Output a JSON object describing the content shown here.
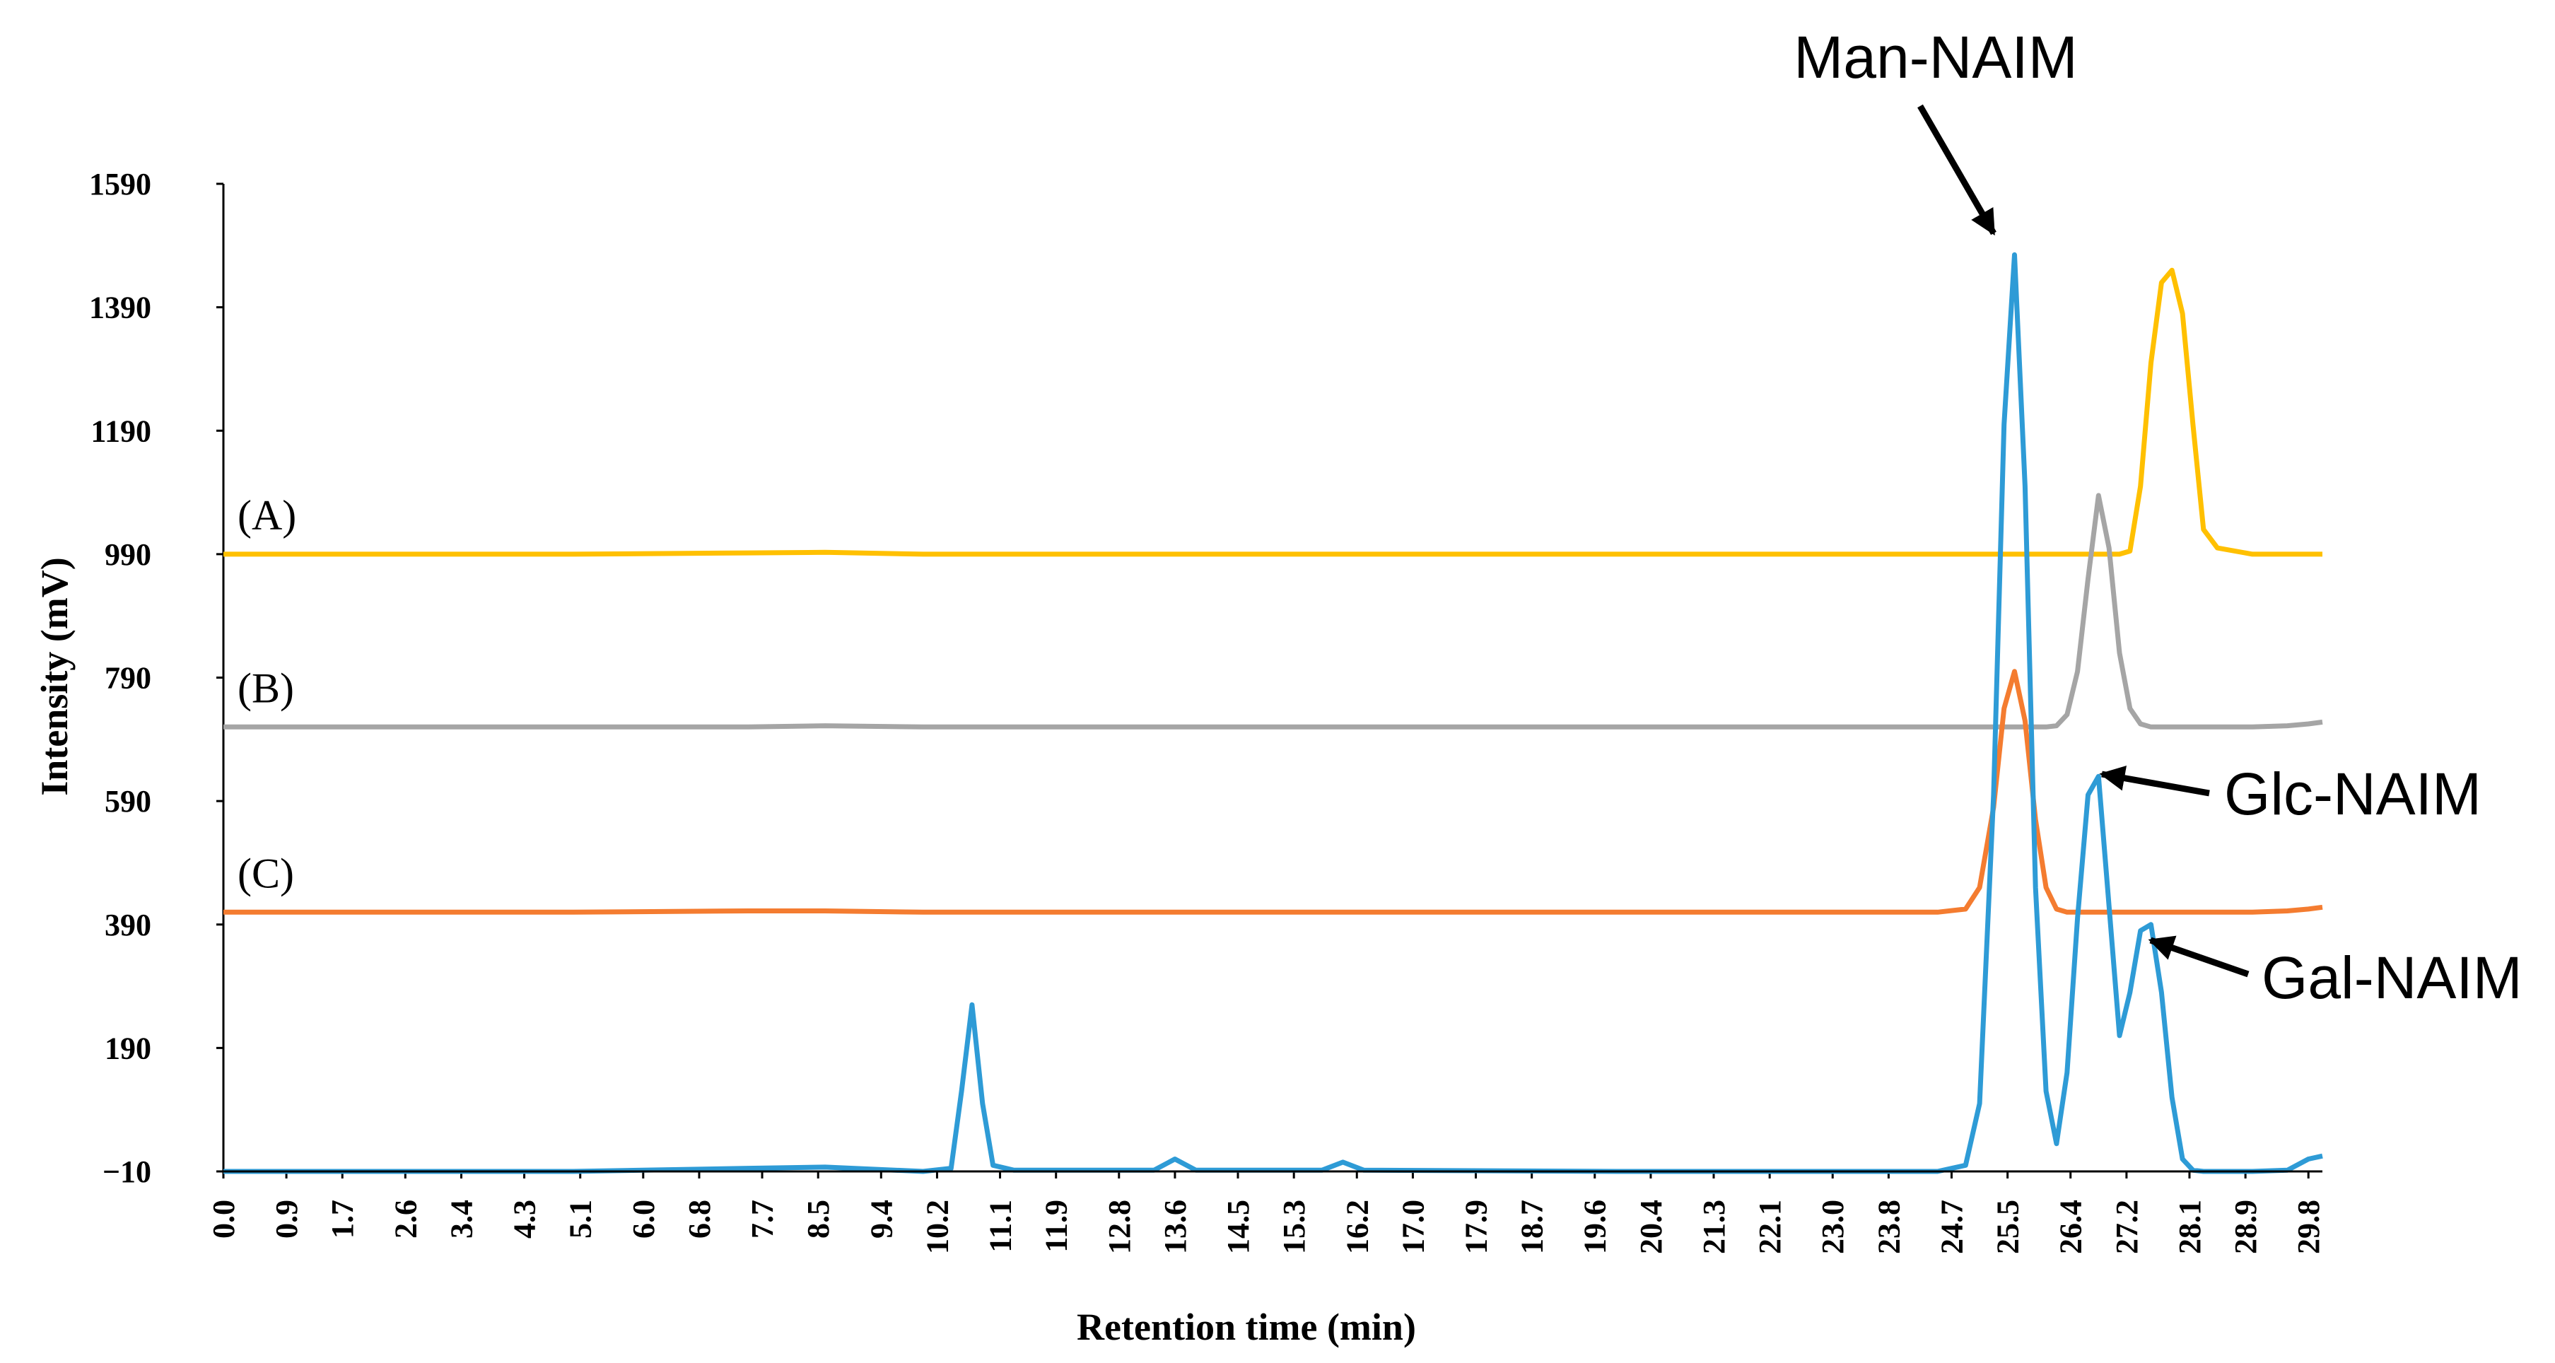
{
  "chart_data": {
    "type": "line",
    "x_label": "Retention time (min)",
    "y_label": "Intensity (mV)",
    "x": [
      0,
      5,
      7.5,
      8.6,
      10,
      10.4,
      10.55,
      10.7,
      10.85,
      11.0,
      11.3,
      13.3,
      13.6,
      13.9,
      15.7,
      16.0,
      16.3,
      20,
      24.5,
      24.9,
      25.1,
      25.3,
      25.45,
      25.6,
      25.75,
      25.9,
      26.05,
      26.2,
      26.35,
      26.5,
      26.65,
      26.8,
      26.95,
      27.1,
      27.25,
      27.4,
      27.55,
      27.7,
      27.85,
      28.0,
      28.15,
      28.3,
      28.5,
      29.0,
      29.5,
      29.8,
      30.0
    ],
    "series": [
      {
        "color": "#2e9bd6",
        "values": [
          -10,
          -10,
          -5,
          -3,
          -10,
          -5,
          120,
          260,
          100,
          0,
          -8,
          -8,
          10,
          -8,
          -8,
          5,
          -8,
          -10,
          -10,
          0,
          100,
          600,
          1200,
          1475,
          1100,
          450,
          120,
          35,
          150,
          400,
          600,
          630,
          420,
          210,
          280,
          380,
          390,
          280,
          110,
          10,
          -8,
          -10,
          -10,
          -10,
          -8,
          10,
          15
        ]
      },
      {
        "name": "(C)",
        "color": "#f47c30",
        "values": [
          410,
          410,
          412,
          412,
          410,
          410,
          410,
          410,
          410,
          410,
          410,
          410,
          410,
          410,
          410,
          410,
          410,
          410,
          410,
          415,
          450,
          580,
          740,
          800,
          720,
          560,
          450,
          415,
          410,
          410,
          410,
          410,
          410,
          410,
          410,
          410,
          410,
          410,
          410,
          410,
          410,
          410,
          410,
          410,
          412,
          415,
          418
        ]
      },
      {
        "name": "(B)",
        "color": "#a5a5a5",
        "values": [
          710,
          710,
          710,
          712,
          710,
          710,
          710,
          710,
          710,
          710,
          710,
          710,
          710,
          710,
          710,
          710,
          710,
          710,
          710,
          710,
          710,
          710,
          710,
          710,
          710,
          710,
          710,
          712,
          730,
          800,
          950,
          1085,
          1000,
          830,
          740,
          715,
          710,
          710,
          710,
          710,
          710,
          710,
          710,
          710,
          712,
          715,
          718
        ]
      },
      {
        "name": "(A)",
        "color": "#ffc000",
        "values": [
          990,
          990,
          992,
          993,
          990,
          990,
          990,
          990,
          990,
          990,
          990,
          990,
          990,
          990,
          990,
          990,
          990,
          990,
          990,
          990,
          990,
          990,
          990,
          990,
          990,
          990,
          990,
          990,
          990,
          990,
          990,
          990,
          990,
          990,
          995,
          1100,
          1300,
          1430,
          1450,
          1380,
          1200,
          1030,
          1000,
          990,
          990,
          990,
          990
        ]
      }
    ],
    "annotations": [
      "Man-NAIM",
      "Glc-NAIM",
      "Gal-NAIM"
    ],
    "xlim": [
      0,
      30
    ],
    "ylim": [
      -10,
      1590
    ],
    "yticks": [
      {
        "value": -10,
        "label": "−10"
      },
      190,
      390,
      590,
      790,
      990,
      1190,
      1390,
      1590
    ],
    "xticks": [
      {
        "value": 0,
        "label": "0.0"
      },
      0.9,
      1.7,
      2.6,
      3.4,
      4.3,
      5.1,
      {
        "value": 6,
        "label": "6.0"
      },
      6.8,
      7.7,
      8.5,
      9.4,
      10.2,
      11.1,
      11.9,
      12.8,
      13.6,
      14.5,
      15.3,
      16.2,
      {
        "value": 17,
        "label": "17.0"
      },
      17.9,
      18.7,
      19.6,
      20.4,
      21.3,
      22.1,
      {
        "value": 23,
        "label": "23.0"
      },
      23.8,
      24.7,
      25.5,
      26.4,
      27.2,
      28.1,
      28.9,
      29.8
    ],
    "grid": false
  }
}
